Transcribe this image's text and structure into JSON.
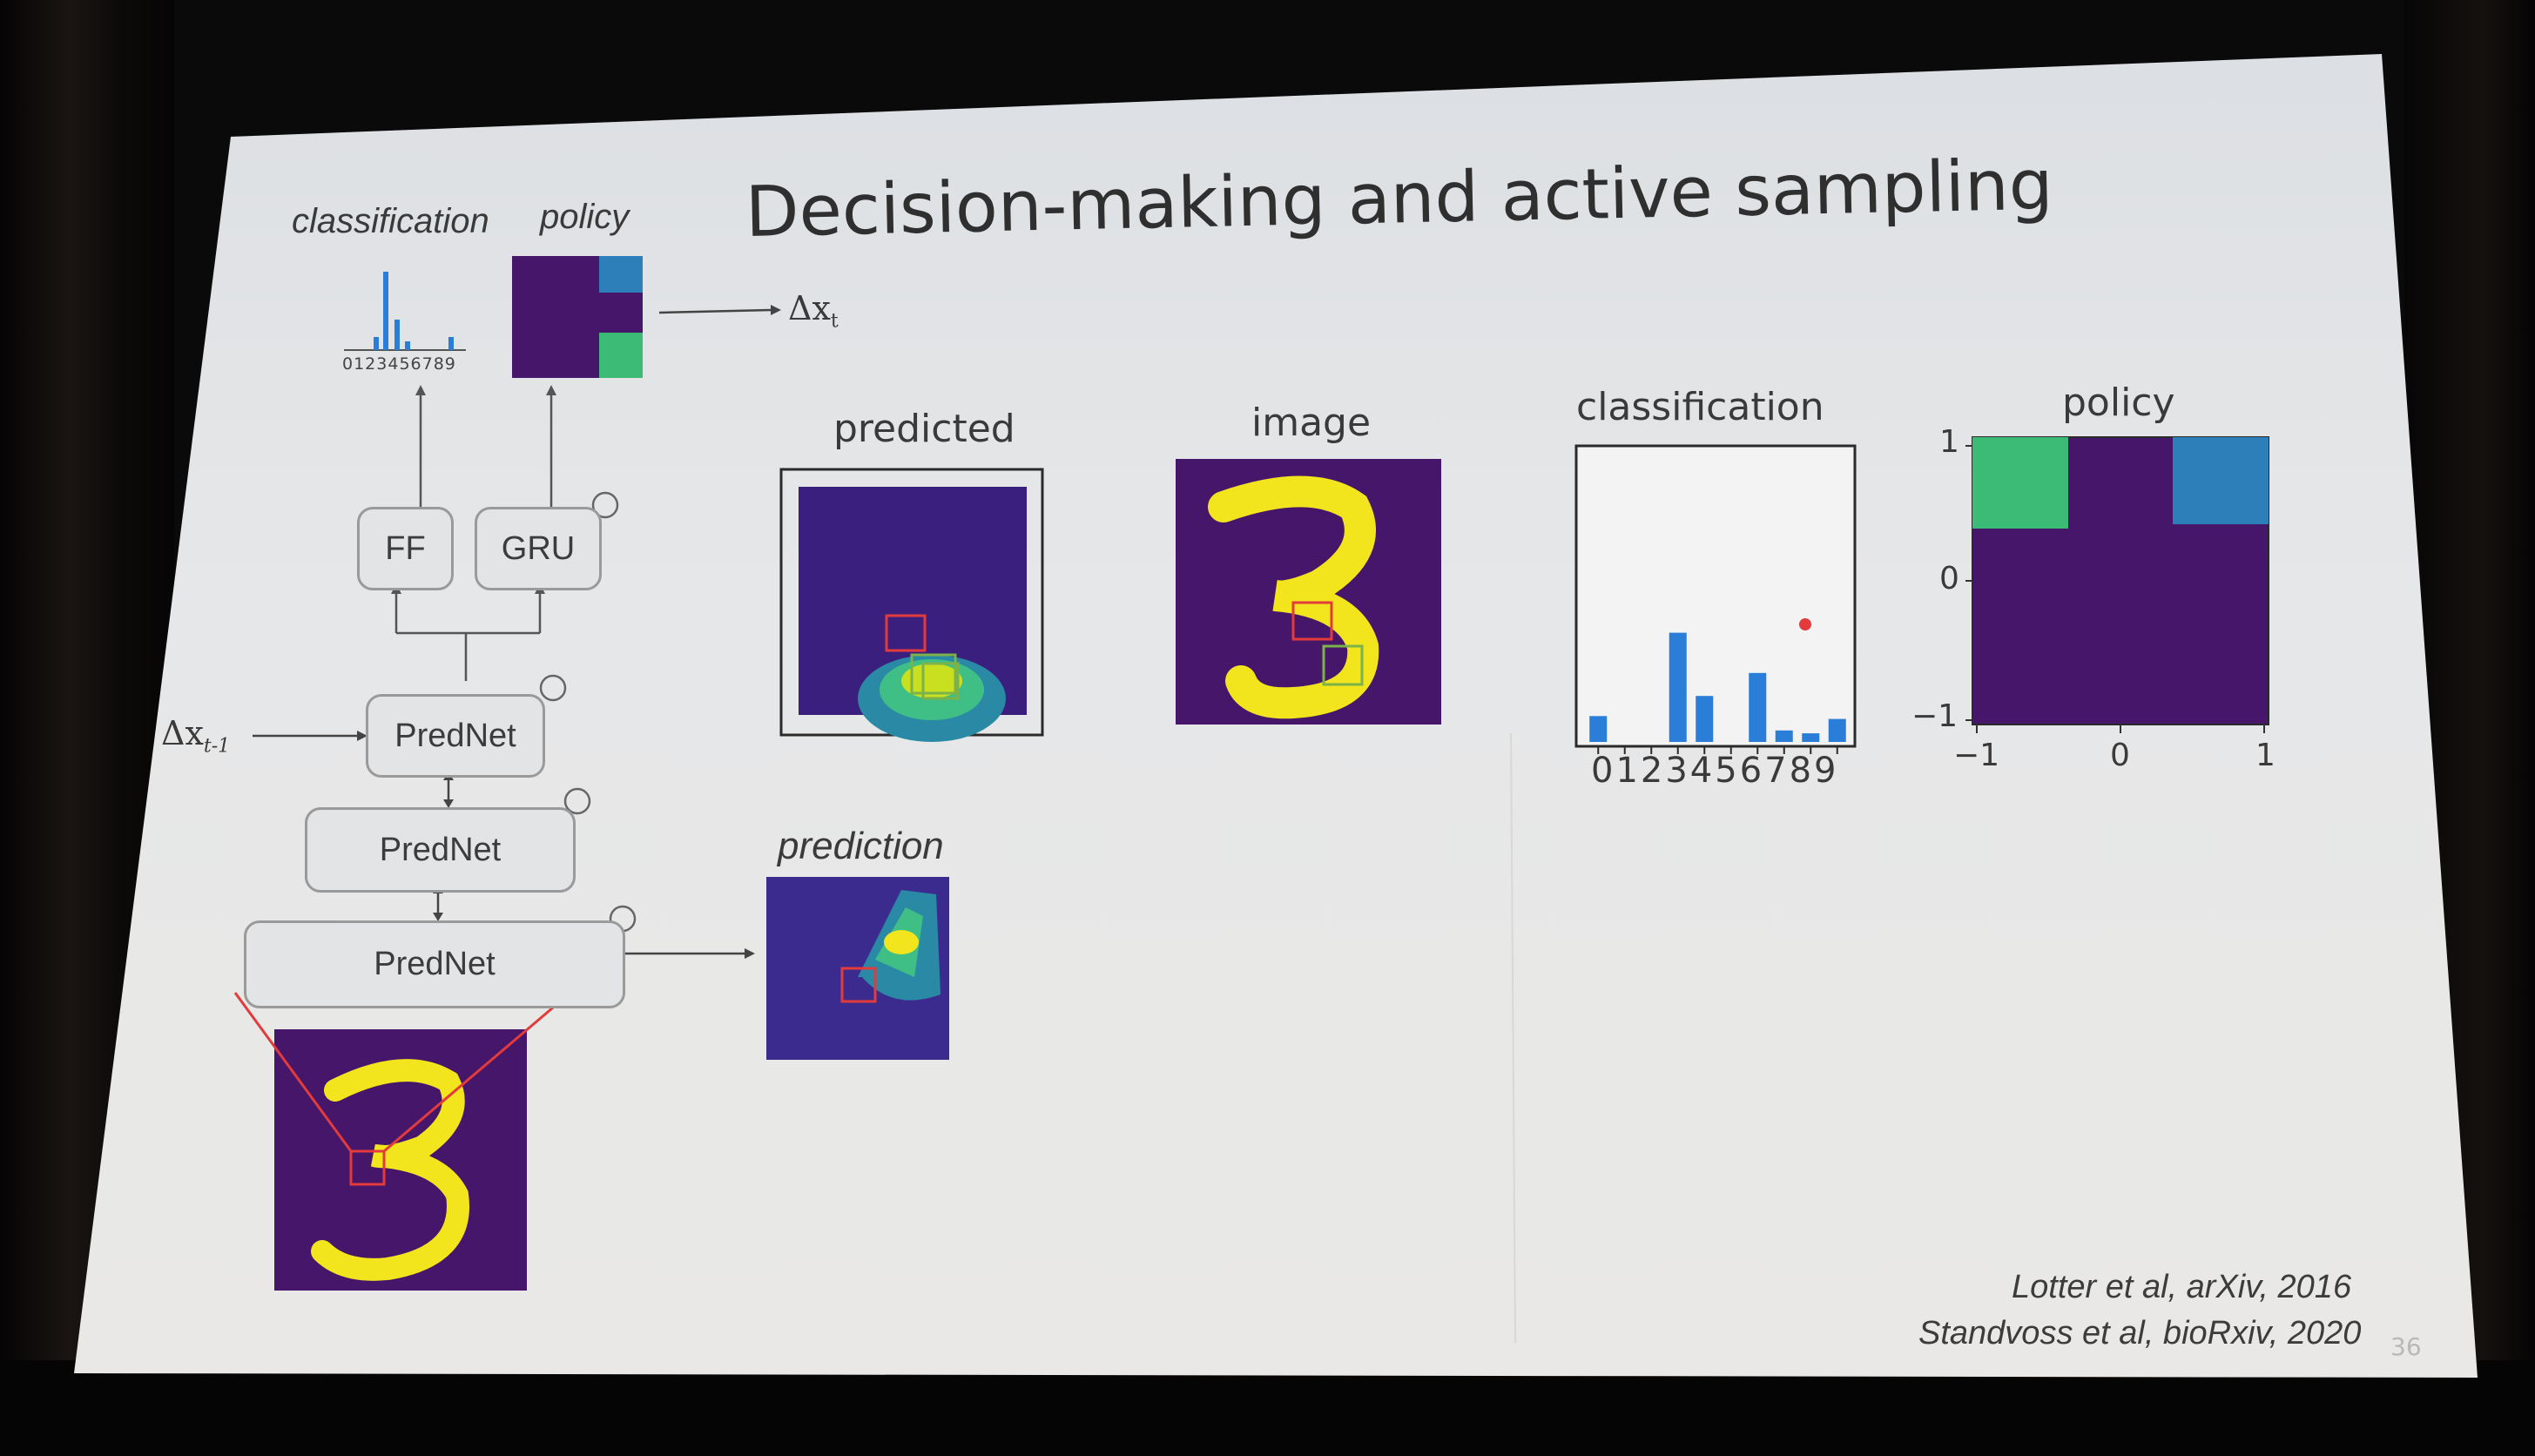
{
  "slide": {
    "title": "Decision-making and active sampling",
    "page_number": "36",
    "citations": [
      "Lotter et al, arXiv, 2016",
      "Standvoss et al, bioRxiv, 2020"
    ]
  },
  "diagram": {
    "top_labels": {
      "classification": "classification",
      "policy": "policy"
    },
    "mini_ticks": "0123456789",
    "output_label": "Δx",
    "output_sub": "t",
    "input_label": "Δx",
    "input_sub": "t-1",
    "boxes": {
      "ff": "FF",
      "gru": "GRU",
      "prednet1": "PredNet",
      "prednet2": "PredNet",
      "prednet3": "PredNet"
    },
    "prediction_label": "prediction"
  },
  "panels": {
    "predicted_label": "predicted",
    "image_label": "image",
    "classification_label": "classification",
    "classification_ticks": "0123456789",
    "policy_label": "policy",
    "policy_yticks": [
      "1",
      "0",
      "−1"
    ],
    "policy_xticks": [
      "−1",
      "0",
      "1"
    ]
  },
  "colors": {
    "viridis_bg": "#46166b",
    "yellow": "#f2e51d",
    "bar_blue": "#2a7ed8",
    "green_cell": "#3bbb76",
    "blue_cell": "#2c7fb8",
    "red_box": "#e33b3b"
  },
  "chart_data": [
    {
      "type": "bar",
      "title": "classification",
      "categories": [
        "0",
        "1",
        "2",
        "3",
        "4",
        "5",
        "6",
        "7",
        "8",
        "9"
      ],
      "values": [
        0.09,
        0.0,
        0.0,
        0.38,
        0.16,
        0.0,
        0.24,
        0.04,
        0.03,
        0.08
      ]
    },
    {
      "type": "heatmap",
      "title": "policy",
      "xlim": [
        -1,
        1
      ],
      "ylim": [
        -1,
        1
      ],
      "cells": [
        {
          "row": 0,
          "col": 0,
          "color": "#3bbb76"
        },
        {
          "row": 0,
          "col": 2,
          "color": "#2c7fb8"
        }
      ]
    }
  ]
}
